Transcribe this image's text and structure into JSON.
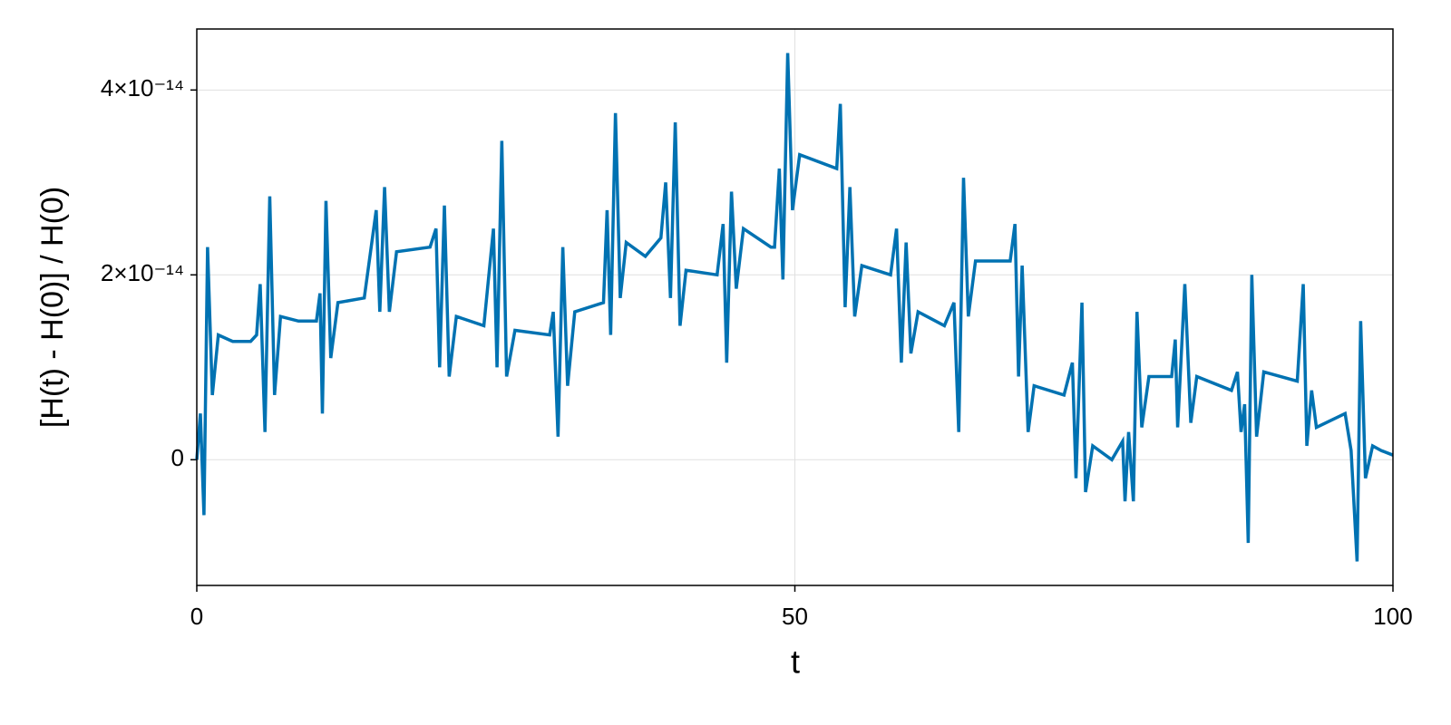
{
  "chart_data": {
    "type": "line",
    "xlabel": "t",
    "ylabel": "[H(t) - H(0)] / H(0)",
    "xlim": [
      0,
      100
    ],
    "xticks": [
      0,
      50,
      100
    ],
    "ylim": [
      -1.36e-14,
      4.66e-14
    ],
    "yticks": [
      0,
      {
        "value": 2e-14,
        "label": "2×10⁻¹⁴"
      },
      {
        "value": 4e-14,
        "label": "4×10⁻¹⁴"
      }
    ],
    "grid": true,
    "series": [
      {
        "color": "#0072b2",
        "x": [
          0,
          0.3,
          0.6,
          0.9,
          1.3,
          1.8,
          3,
          4.5,
          5,
          5.3,
          5.7,
          6.1,
          6.5,
          7,
          8.5,
          10,
          10.3,
          10.5,
          10.8,
          11.2,
          11.8,
          14,
          15,
          15.3,
          15.7,
          16.1,
          16.7,
          19.5,
          20,
          20.3,
          20.7,
          21.1,
          21.7,
          24,
          24.8,
          25.1,
          25.5,
          25.9,
          26.6,
          29.5,
          29.8,
          30.2,
          30.6,
          31,
          31.6,
          34,
          34.3,
          34.6,
          35,
          35.4,
          35.9,
          37.5,
          38.8,
          39.2,
          39.6,
          40,
          40.4,
          40.9,
          43.5,
          44,
          44.3,
          44.7,
          45.1,
          45.7,
          48,
          48.3,
          48.7,
          49,
          49.4,
          49.8,
          50.4,
          53.5,
          53.8,
          54.2,
          54.6,
          55,
          55.6,
          58,
          58.5,
          58.9,
          59.3,
          59.7,
          60.3,
          62.5,
          63.3,
          63.7,
          64.1,
          64.5,
          65.1,
          68,
          68.4,
          68.7,
          69,
          69.5,
          70,
          72.5,
          73.2,
          73.5,
          74,
          74.3,
          74.9,
          76.5,
          77.4,
          77.6,
          77.9,
          78.3,
          78.6,
          79,
          79.6,
          81.5,
          81.8,
          82,
          82.6,
          83.1,
          83.6,
          86.5,
          87,
          87.3,
          87.6,
          87.9,
          88.2,
          88.6,
          89.2,
          92,
          92.5,
          92.8,
          93.2,
          93.6,
          96,
          96.5,
          97,
          97.3,
          97.7,
          98.3,
          99,
          100
        ],
        "values": [
          0,
          5e-15,
          -6e-15,
          2.3e-14,
          7e-15,
          1.35e-14,
          1.28e-14,
          1.28e-14,
          1.35e-14,
          1.9e-14,
          3e-15,
          2.85e-14,
          7e-15,
          1.55e-14,
          1.5e-14,
          1.5e-14,
          1.8e-14,
          5e-15,
          2.8e-14,
          1.1e-14,
          1.7e-14,
          1.75e-14,
          2.7e-14,
          1.6e-14,
          2.95e-14,
          1.6e-14,
          2.25e-14,
          2.3e-14,
          2.5e-14,
          1e-14,
          2.75e-14,
          9e-15,
          1.55e-14,
          1.45e-14,
          2.5e-14,
          1e-14,
          3.45e-14,
          9e-15,
          1.4e-14,
          1.35e-14,
          1.6e-14,
          2.5e-15,
          2.3e-14,
          8e-15,
          1.6e-14,
          1.7e-14,
          2.7e-14,
          1.35e-14,
          3.75e-14,
          1.75e-14,
          2.35e-14,
          2.2e-14,
          2.4e-14,
          3e-14,
          1.75e-14,
          3.65e-14,
          1.45e-14,
          2.05e-14,
          2e-14,
          2.55e-14,
          1.05e-14,
          2.9e-14,
          1.85e-14,
          2.5e-14,
          2.3e-14,
          2.3e-14,
          3.15e-14,
          1.95e-14,
          4.4e-14,
          2.7e-14,
          3.3e-14,
          3.15e-14,
          3.85e-14,
          1.65e-14,
          2.95e-14,
          1.55e-14,
          2.1e-14,
          2e-14,
          2.5e-14,
          1.05e-14,
          2.35e-14,
          1.15e-14,
          1.6e-14,
          1.45e-14,
          1.7e-14,
          3e-15,
          3.05e-14,
          1.55e-14,
          2.15e-14,
          2.15e-14,
          2.55e-14,
          9e-15,
          2.1e-14,
          3e-15,
          8e-15,
          7e-15,
          1.05e-14,
          -2e-15,
          1.7e-14,
          -3.5e-15,
          1.5e-15,
          0,
          2e-15,
          -4.5e-15,
          3e-15,
          -4.5e-15,
          1.6e-14,
          3.5e-15,
          9e-15,
          9e-15,
          1.3e-14,
          3.5e-15,
          1.9e-14,
          4e-15,
          9e-15,
          7.5e-15,
          9.5e-15,
          3e-15,
          6e-15,
          -9e-15,
          2e-14,
          2.5e-15,
          9.5e-15,
          8.5e-15,
          1.9e-14,
          1.5e-15,
          7.5e-15,
          3.5e-15,
          5e-15,
          1e-15,
          -1.1e-14,
          1.5e-14,
          -2e-15,
          1.5e-15,
          1e-15,
          5e-16
        ]
      }
    ]
  }
}
